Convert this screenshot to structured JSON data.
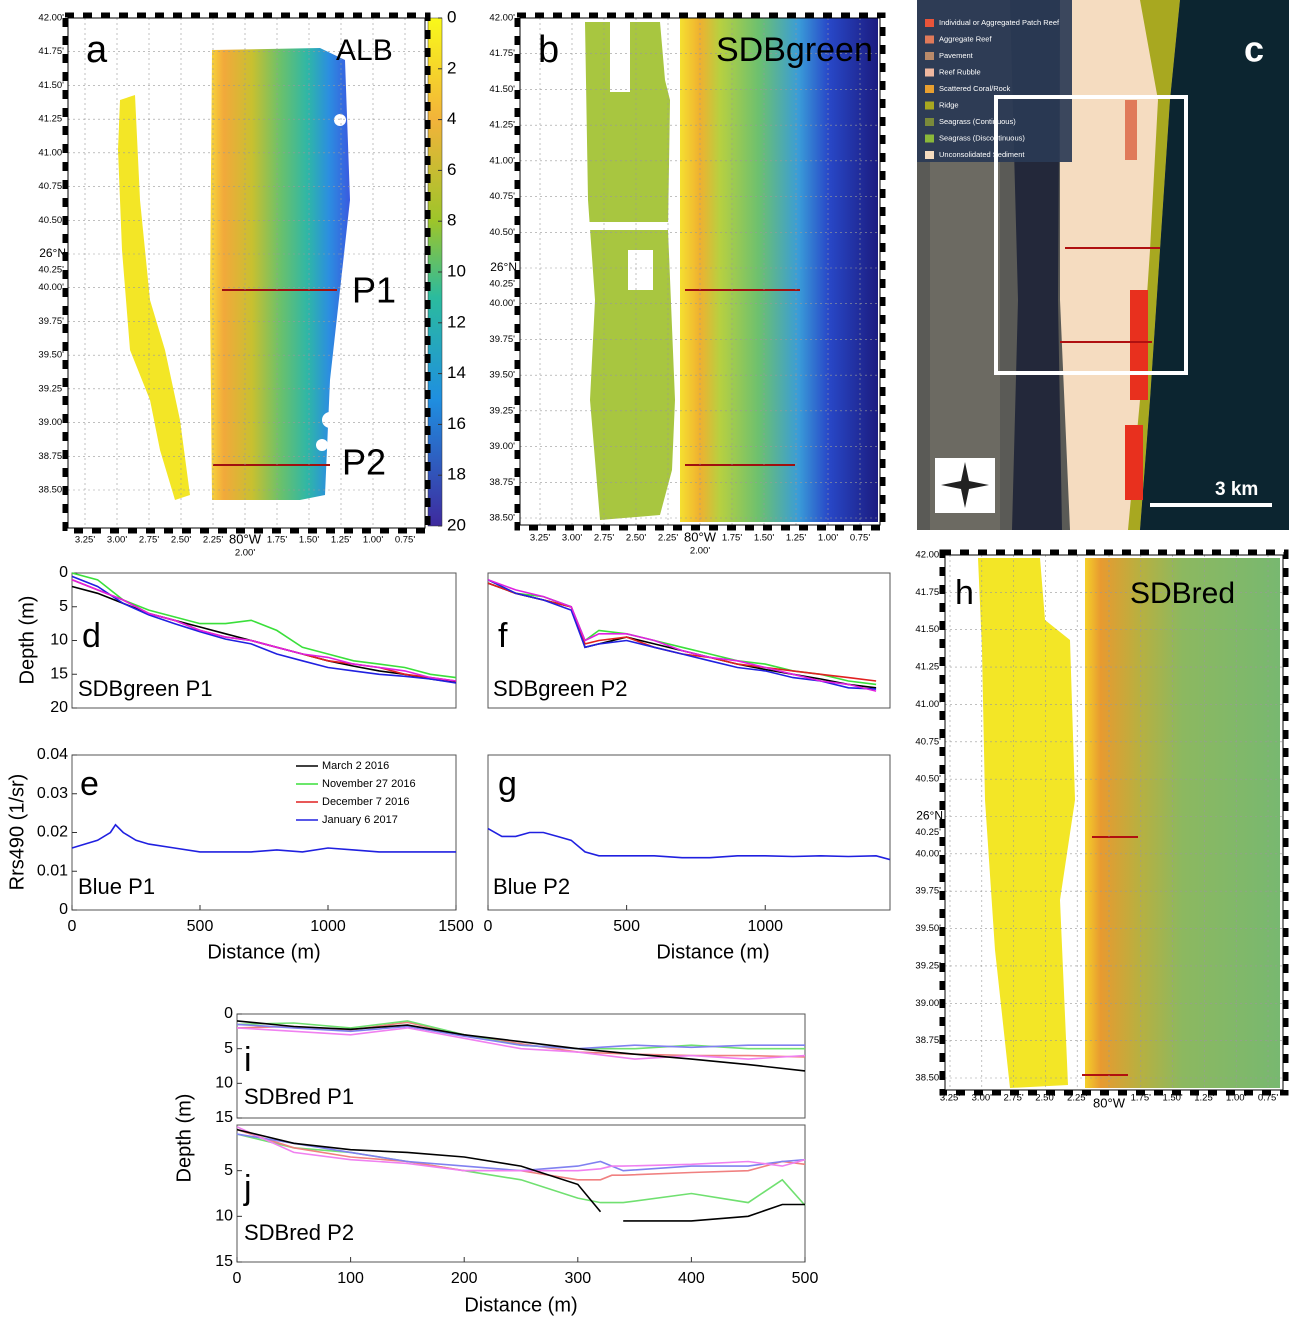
{
  "maps": [
    {
      "label": "a",
      "title": "ALB",
      "profile_labels": [
        "P1",
        "P2"
      ],
      "lat_ticks": [
        "42.00'",
        "41.75'",
        "41.50'",
        "41.25'",
        "41.00'",
        "40.75'",
        "40.50'",
        "40.25'",
        "40.00'",
        "39.75'",
        "39.50'",
        "39.25'",
        "39.00'",
        "38.75'",
        "38.50'"
      ],
      "lat_prefix": "26°N",
      "lon_ticks": [
        "3.25'",
        "3.00'",
        "2.75'",
        "2.50'",
        "2.25'",
        "2.00'",
        "1.75'",
        "1.50'",
        "1.25'",
        "1.00'",
        "0.75'"
      ],
      "lon_prefix": "80°W",
      "colorbar": {
        "lim": [
          0,
          20
        ],
        "ticks": [
          0,
          2,
          4,
          6,
          8,
          10,
          12,
          14,
          16,
          18,
          20
        ]
      }
    },
    {
      "label": "b",
      "title": "SDBgreen",
      "lat_ticks": [
        "42.00'",
        "41.75'",
        "41.50'",
        "41.25'",
        "41.00'",
        "40.75'",
        "40.50'",
        "40.25'",
        "40.00'",
        "39.75'",
        "39.50'",
        "39.25'",
        "39.00'",
        "38.75'",
        "38.50'"
      ],
      "lat_prefix": "26°N",
      "lon_ticks": [
        "3.25'",
        "3.00'",
        "2.75'",
        "2.50'",
        "2.25'",
        "2.00'",
        "1.75'",
        "1.50'",
        "1.25'",
        "1.00'",
        "0.75'"
      ],
      "lon_prefix": "80°W"
    },
    {
      "label": "c",
      "scale": "3 km",
      "legend": [
        {
          "name": "Individual or Aggregated Patch Reef",
          "color": "#e8543a"
        },
        {
          "name": "Aggregate Reef",
          "color": "#e07a5a"
        },
        {
          "name": "Pavement",
          "color": "#b98a6a"
        },
        {
          "name": "Reef Rubble",
          "color": "#f0b8a0"
        },
        {
          "name": "Scattered Coral/Rock",
          "color": "#e8a030"
        },
        {
          "name": "Ridge",
          "color": "#a8a820"
        },
        {
          "name": "Seagrass (Continuous)",
          "color": "#7a8a3a"
        },
        {
          "name": "Seagrass (Discontinuous)",
          "color": "#8ab83a"
        },
        {
          "name": "Unconsolidated Sediment",
          "color": "#f5dcc0"
        }
      ]
    },
    {
      "label": "h",
      "title": "SDBred",
      "lat_ticks": [
        "42.00'",
        "41.75'",
        "41.50'",
        "41.25'",
        "41.00'",
        "40.75'",
        "40.50'",
        "40.25'",
        "40.00'",
        "39.75'",
        "39.50'",
        "39.25'",
        "39.00'",
        "38.75'",
        "38.50'"
      ],
      "lat_prefix": "26°N",
      "lon_ticks": [
        "3.25'",
        "3.00'",
        "2.75'",
        "2.50'",
        "2.25'",
        null,
        "1.75'",
        "1.50'",
        "1.25'",
        "1.00'",
        "0.75'"
      ],
      "lon_prefix": "80°W"
    }
  ],
  "chart_data": [
    {
      "type": "line",
      "label": "d",
      "title": "SDBgreen P1",
      "ylabel": "Depth (m)",
      "y_inverted": true,
      "xlim": [
        0,
        1500
      ],
      "ylim": [
        0,
        20
      ],
      "yticks": [
        0,
        5,
        10,
        15,
        20
      ],
      "x": [
        0,
        100,
        200,
        300,
        400,
        500,
        600,
        700,
        800,
        900,
        1000,
        1100,
        1200,
        1300,
        1400,
        1500
      ],
      "series": [
        {
          "color": "#000000",
          "values": [
            2,
            3,
            4.5,
            6,
            7,
            8,
            9,
            10,
            11,
            12,
            13,
            13.8,
            14.5,
            15,
            15.7,
            16.2
          ]
        },
        {
          "color": "#3adf3a",
          "values": [
            0,
            1,
            4,
            5.5,
            6.5,
            7.5,
            7.5,
            7,
            8.5,
            11,
            12,
            13,
            13.5,
            14,
            15,
            15.5
          ]
        },
        {
          "color": "#e02020",
          "values": [
            1,
            2.5,
            4,
            6,
            7,
            8.5,
            9.5,
            10,
            11,
            12,
            13,
            13.5,
            14,
            15,
            15.5,
            16
          ]
        },
        {
          "color": "#2020e0",
          "values": [
            0.5,
            2,
            4.5,
            6.2,
            7.5,
            8.7,
            9.8,
            10.5,
            12,
            13,
            14,
            14.5,
            15,
            15.3,
            15.7,
            16.3
          ]
        },
        {
          "color": "#e020e0",
          "values": [
            1,
            2.5,
            4,
            6,
            7,
            8.5,
            9.5,
            10,
            11,
            12,
            12.5,
            13.5,
            14,
            14.5,
            15.5,
            16
          ]
        }
      ]
    },
    {
      "type": "line",
      "label": "e",
      "title": "Blue P1",
      "ylabel": "Rrs490 (1/sr)",
      "xlabel": "Distance (m)",
      "xlim": [
        0,
        1500
      ],
      "ylim": [
        0,
        0.04
      ],
      "yticks": [
        0,
        0.01,
        0.02,
        0.03,
        0.04
      ],
      "xticks": [
        0,
        500,
        1000,
        1500
      ],
      "x": [
        0,
        50,
        100,
        150,
        170,
        200,
        250,
        300,
        400,
        500,
        600,
        700,
        800,
        900,
        1000,
        1100,
        1200,
        1300,
        1400,
        1500
      ],
      "series": [
        {
          "color": "#2020e0",
          "values": [
            0.016,
            0.017,
            0.018,
            0.02,
            0.022,
            0.02,
            0.018,
            0.017,
            0.016,
            0.015,
            0.015,
            0.015,
            0.0155,
            0.015,
            0.016,
            0.0155,
            0.015,
            0.015,
            0.015,
            0.015
          ]
        }
      ],
      "legend": [
        {
          "name": "March 2 2016",
          "color": "#000000"
        },
        {
          "name": "November 27 2016",
          "color": "#3adf3a"
        },
        {
          "name": "December 7 2016",
          "color": "#e02020"
        },
        {
          "name": "January 6 2017",
          "color": "#2020e0"
        }
      ]
    },
    {
      "type": "line",
      "label": "f",
      "title": "SDBgreen P2",
      "y_inverted": true,
      "xlim": [
        0,
        1450
      ],
      "ylim": [
        0,
        20
      ],
      "x": [
        0,
        100,
        200,
        300,
        350,
        400,
        500,
        600,
        700,
        800,
        900,
        1000,
        1100,
        1200,
        1300,
        1400
      ],
      "series": [
        {
          "color": "#000000",
          "values": [
            1.5,
            3,
            4,
            5,
            11,
            10.5,
            9.5,
            10.5,
            11.5,
            12.5,
            13.5,
            14.3,
            15,
            15.7,
            16.5,
            17
          ]
        },
        {
          "color": "#3adf3a",
          "values": [
            1,
            3,
            3.5,
            5,
            10,
            8.5,
            9,
            10,
            11,
            12,
            13,
            13.5,
            14.5,
            15,
            16,
            16.5
          ]
        },
        {
          "color": "#e02020",
          "values": [
            1.5,
            3,
            4,
            5,
            10.5,
            10,
            9.5,
            11,
            12,
            12.5,
            13.5,
            14,
            14.5,
            15,
            15.5,
            16
          ]
        },
        {
          "color": "#2020e0",
          "values": [
            1,
            3,
            4,
            5.5,
            11,
            10.5,
            10,
            11,
            12,
            13,
            14,
            14.5,
            15.5,
            16,
            17,
            17.2
          ]
        },
        {
          "color": "#e020e0",
          "values": [
            1,
            2.5,
            3.5,
            5,
            10,
            9,
            9,
            10,
            11.5,
            12.5,
            13,
            14,
            15,
            16,
            16.5,
            17.5
          ]
        }
      ]
    },
    {
      "type": "line",
      "label": "g",
      "title": "Blue P2",
      "xlabel": "Distance (m)",
      "xlim": [
        0,
        1450
      ],
      "ylim": [
        0,
        0.04
      ],
      "xticks": [
        0,
        500,
        1000
      ],
      "x": [
        0,
        50,
        100,
        150,
        200,
        250,
        300,
        350,
        400,
        500,
        600,
        700,
        800,
        900,
        1000,
        1100,
        1200,
        1300,
        1400,
        1450
      ],
      "series": [
        {
          "color": "#2020e0",
          "values": [
            0.021,
            0.019,
            0.019,
            0.02,
            0.02,
            0.019,
            0.018,
            0.015,
            0.014,
            0.014,
            0.014,
            0.0135,
            0.0135,
            0.014,
            0.014,
            0.0138,
            0.014,
            0.0138,
            0.014,
            0.013
          ]
        }
      ]
    },
    {
      "type": "line",
      "label": "i",
      "title": "SDBred P1",
      "ylabel": "Depth (m)",
      "y_inverted": true,
      "xlim": [
        0,
        500
      ],
      "ylim": [
        0,
        15
      ],
      "yticks": [
        0,
        5,
        10,
        15
      ],
      "x": [
        0,
        50,
        100,
        150,
        200,
        250,
        300,
        350,
        400,
        450,
        500
      ],
      "series": [
        {
          "color": "#f08080",
          "values": [
            2,
            1.8,
            2.3,
            1.2,
            3,
            4.3,
            5.5,
            5.8,
            6,
            6,
            6.2
          ]
        },
        {
          "color": "#70e070",
          "values": [
            1.5,
            1.3,
            2,
            1,
            3,
            4.5,
            5,
            5,
            4.5,
            5,
            5
          ]
        },
        {
          "color": "#8080f0",
          "values": [
            1.5,
            2,
            2.5,
            1.8,
            3.2,
            4.5,
            5,
            4.5,
            4.8,
            4.5,
            4.5
          ]
        },
        {
          "color": "#f080f0",
          "values": [
            2,
            2.5,
            3,
            2,
            3.5,
            5,
            5.5,
            6.5,
            6,
            6.5,
            6
          ]
        },
        {
          "color": "#000000",
          "values": [
            1,
            1.8,
            2.2,
            1.6,
            3,
            4,
            5,
            5.8,
            6.5,
            7.3,
            8.2
          ]
        }
      ]
    },
    {
      "type": "line",
      "label": "j",
      "title": "SDBred P2",
      "xlabel": "Distance (m)",
      "y_inverted": true,
      "xlim": [
        0,
        500
      ],
      "ylim": [
        0,
        15
      ],
      "yticks": [
        5,
        10,
        15
      ],
      "xticks": [
        0,
        100,
        200,
        300,
        400,
        500
      ],
      "x": [
        0,
        50,
        100,
        150,
        200,
        250,
        300,
        320,
        330,
        340,
        400,
        450,
        480,
        500
      ],
      "series": [
        {
          "color": "#70e070",
          "values": [
            1,
            2.5,
            3,
            4,
            5,
            6,
            8,
            8.5,
            8.5,
            8.5,
            7.5,
            8.5,
            6,
            8.8
          ]
        },
        {
          "color": "#f08080",
          "values": [
            0.5,
            2.5,
            3.5,
            4,
            5,
            5,
            6,
            6,
            5.5,
            5.5,
            5.2,
            5,
            4,
            4.3
          ]
        },
        {
          "color": "#8080f0",
          "values": [
            1,
            2,
            3,
            4,
            4.5,
            5,
            4.5,
            4,
            4.5,
            5,
            4.5,
            4.5,
            4,
            3.8
          ]
        },
        {
          "color": "#f080f0",
          "values": [
            0.2,
            3,
            3.8,
            4.2,
            5,
            5,
            5,
            4.8,
            4.5,
            4.5,
            4.3,
            4,
            4.5,
            3.8
          ]
        },
        {
          "color": "#000000",
          "values": [
            0.5,
            2,
            2.7,
            3,
            3.5,
            4.5,
            6.5,
            9.5,
            null,
            10.5,
            10.5,
            10,
            8.7,
            8.7
          ]
        }
      ]
    }
  ]
}
